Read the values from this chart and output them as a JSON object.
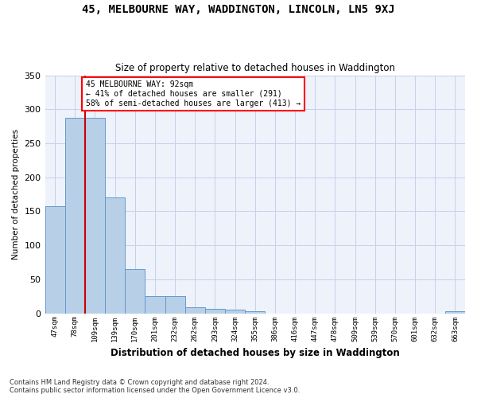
{
  "title": "45, MELBOURNE WAY, WADDINGTON, LINCOLN, LN5 9XJ",
  "subtitle": "Size of property relative to detached houses in Waddington",
  "xlabel": "Distribution of detached houses by size in Waddington",
  "ylabel": "Number of detached properties",
  "categories": [
    "47sqm",
    "78sqm",
    "109sqm",
    "139sqm",
    "170sqm",
    "201sqm",
    "232sqm",
    "262sqm",
    "293sqm",
    "324sqm",
    "355sqm",
    "386sqm",
    "416sqm",
    "447sqm",
    "478sqm",
    "509sqm",
    "539sqm",
    "570sqm",
    "601sqm",
    "632sqm",
    "663sqm"
  ],
  "values": [
    157,
    287,
    287,
    170,
    65,
    25,
    25,
    9,
    7,
    5,
    3,
    0,
    0,
    0,
    0,
    0,
    0,
    0,
    0,
    0,
    3
  ],
  "bar_color": "#b8cfe8",
  "bar_edge_color": "#6699cc",
  "red_line_x": 1.5,
  "annotation_text": "45 MELBOURNE WAY: 92sqm\n← 41% of detached houses are smaller (291)\n58% of semi-detached houses are larger (413) →",
  "annotation_box_color": "white",
  "annotation_box_edge_color": "red",
  "red_line_color": "#cc0000",
  "ylim": [
    0,
    350
  ],
  "yticks": [
    0,
    50,
    100,
    150,
    200,
    250,
    300,
    350
  ],
  "footer_text": "Contains HM Land Registry data © Crown copyright and database right 2024.\nContains public sector information licensed under the Open Government Licence v3.0.",
  "background_color": "#eef2fb",
  "grid_color": "#c8d0e8"
}
